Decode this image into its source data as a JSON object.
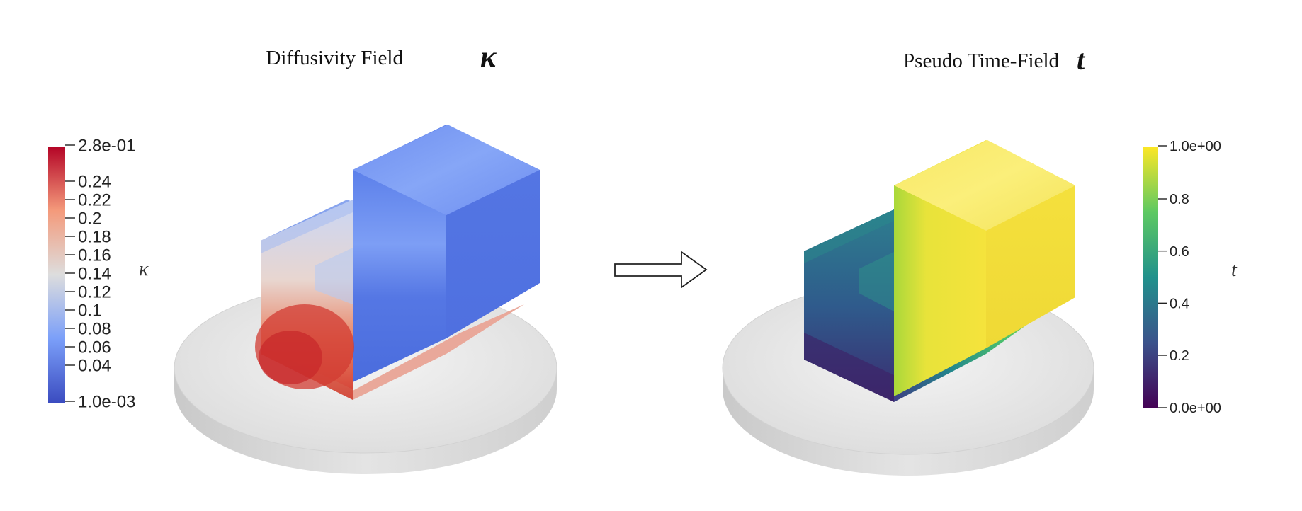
{
  "left_panel": {
    "title": "Diffusivity Field",
    "symbol": "κ",
    "colorbar": {
      "label": "κ",
      "max_label": "2.8e-01",
      "min_label": "1.0e-03",
      "ticks": [
        "0.24",
        "0.22",
        "0.2",
        "0.18",
        "0.16",
        "0.14",
        "0.12",
        "0.1",
        "0.08",
        "0.06",
        "0.04"
      ],
      "colormap": "coolwarm",
      "color_low": "#3b4cc0",
      "color_mid": "#dddddd",
      "color_high": "#b40426"
    }
  },
  "right_panel": {
    "title": "Pseudo Time-Field",
    "symbol": "t",
    "colorbar": {
      "label": "t",
      "max_label": "1.0e+00",
      "min_label": "0.0e+00",
      "ticks": [
        "0.8",
        "0.6",
        "0.4",
        "0.2"
      ],
      "colormap": "viridis",
      "color_low": "#440154",
      "color_mid": "#21918c",
      "color_high": "#fde725"
    }
  },
  "arrow": {
    "icon": "outline-right-arrow-icon"
  }
}
